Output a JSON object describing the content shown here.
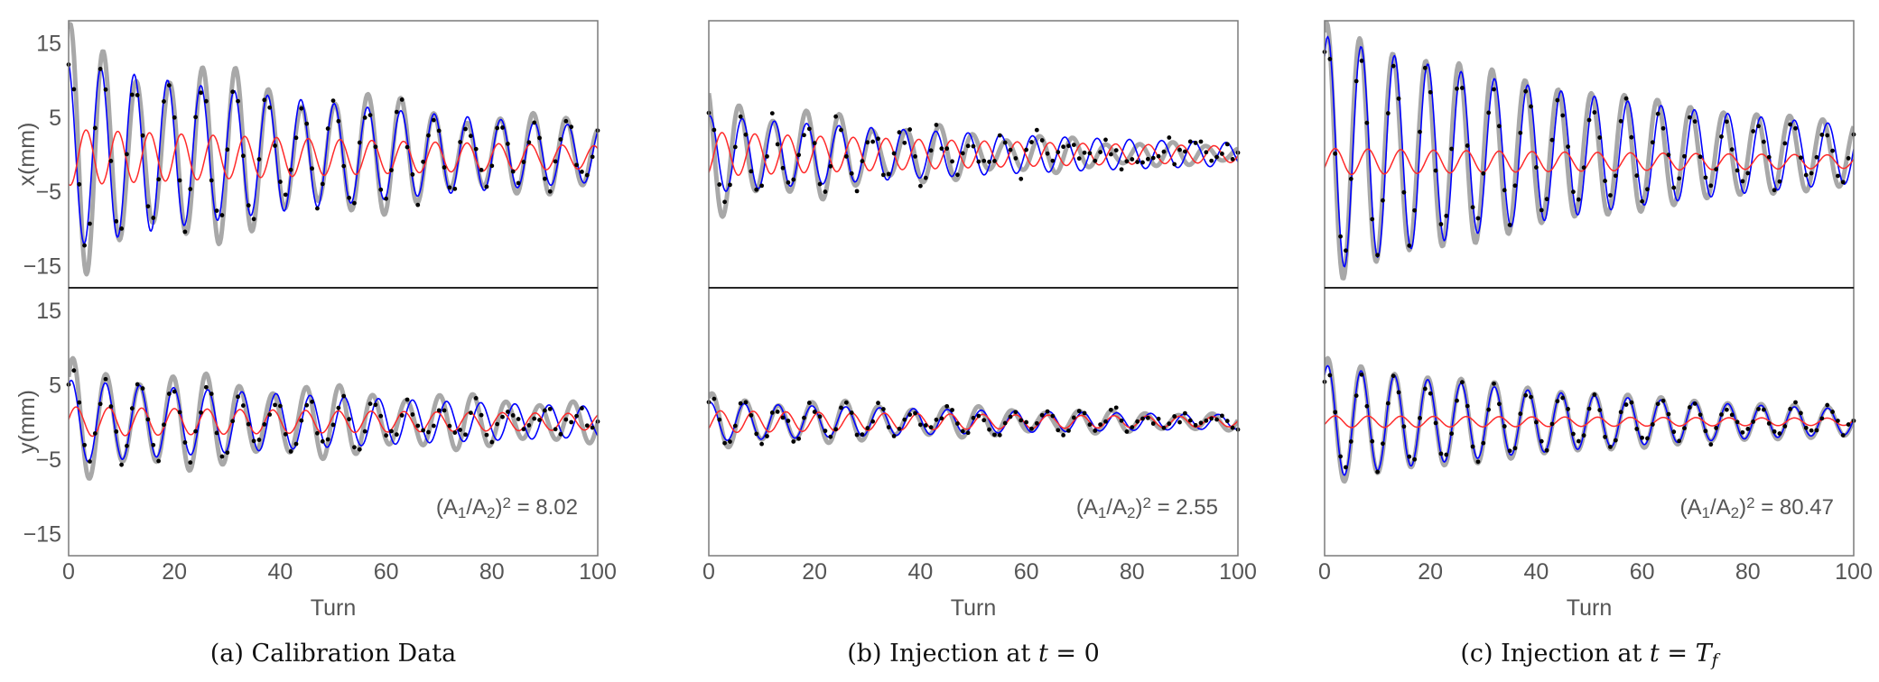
{
  "chart_data": {
    "type": "line",
    "x": {
      "label": "Turn",
      "range": [
        0,
        100
      ],
      "ticks": [
        0,
        20,
        40,
        60,
        80,
        100
      ]
    },
    "y_ticks": [
      15,
      5,
      -5,
      -15
    ],
    "ylim": [
      -18,
      18
    ],
    "colors": {
      "measured": "#000000",
      "fit_gray": "#a8a8a8",
      "fit_blue": "#0000ff",
      "fit_red": "#ff2a2a",
      "frame": "#7a7a7a"
    },
    "legend": "none",
    "model": "offset + amp*exp(-decay*turn)*(1+beat*cos(2*pi*turn/beat_period))*cos(2*pi*(turn-peak)/period)",
    "panels": [
      {
        "caption": [
          {
            "t": "(a) Calibration Data"
          }
        ],
        "annotation": [
          {
            "t": "(A"
          },
          {
            "t": "1",
            "sub": true
          },
          {
            "t": "/A"
          },
          {
            "t": "2",
            "sub": true
          },
          {
            "t": ")"
          },
          {
            "t": "2",
            "sup": true
          },
          {
            "t": " = 8.02"
          }
        ],
        "ratio": 8.02,
        "subplots": [
          {
            "ylabel": "x(mm)",
            "noise": 1.6,
            "gray": {
              "amp": 14.5,
              "decay": 0.013,
              "period": 6.25,
              "peak": 0.3,
              "offset": 0,
              "beat": 0.22,
              "beat_period": 30
            },
            "blue": {
              "amp": 12.5,
              "decay": 0.012,
              "period": 6.3,
              "peak": -0.2,
              "offset": 0,
              "beat": 0,
              "beat_period": 1
            },
            "red": {
              "amp": 3.8,
              "decay": 0.009,
              "period": 6.0,
              "peak": 3.3,
              "offset": -0.4,
              "beat": 0,
              "beat_period": 1
            }
          },
          {
            "ylabel": "y(mm)",
            "noise": 1.2,
            "gray": {
              "amp": 7.2,
              "decay": 0.011,
              "period": 6.3,
              "peak": 0.8,
              "offset": 0,
              "beat": 0.2,
              "beat_period": 25
            },
            "blue": {
              "amp": 5.6,
              "decay": 0.01,
              "period": 6.45,
              "peak": 0.5,
              "offset": 0,
              "beat": 0,
              "beat_period": 1
            },
            "red": {
              "amp": 2.0,
              "decay": 0.006,
              "period": 6.2,
              "peak": 1.4,
              "offset": 0,
              "beat": 0,
              "beat_period": 1
            }
          }
        ]
      },
      {
        "caption": [
          {
            "t": "(b) Injection at "
          },
          {
            "t": "t",
            "it": true
          },
          {
            "t": " = 0"
          }
        ],
        "annotation": [
          {
            "t": "(A"
          },
          {
            "t": "1",
            "sub": true
          },
          {
            "t": "/A"
          },
          {
            "t": "2",
            "sub": true
          },
          {
            "t": ")"
          },
          {
            "t": "2",
            "sup": true
          },
          {
            "t": " = 2.55"
          }
        ],
        "ratio": 2.55,
        "subplots": [
          {
            "ylabel": "x(mm)",
            "noise": 1.8,
            "gray": {
              "amp": 7.5,
              "decay": 0.02,
              "period": 6.3,
              "peak": 5.8,
              "offset": 0,
              "beat": 0.25,
              "beat_period": 22
            },
            "blue": {
              "amp": 5.2,
              "decay": 0.012,
              "period": 6.1,
              "peak": 0.2,
              "offset": 0,
              "beat": 0,
              "beat_period": 1
            },
            "red": {
              "amp": 3.0,
              "decay": 0.01,
              "period": 6.2,
              "peak": 2.5,
              "offset": 0,
              "beat": 0,
              "beat_period": 1
            }
          },
          {
            "ylabel": "y(mm)",
            "noise": 0.9,
            "gray": {
              "amp": 3.2,
              "decay": 0.012,
              "period": 6.3,
              "peak": 0.6,
              "offset": 0,
              "beat": 0.2,
              "beat_period": 25
            },
            "blue": {
              "amp": 2.6,
              "decay": 0.01,
              "period": 6.4,
              "peak": 0.3,
              "offset": 0,
              "beat": 0,
              "beat_period": 1
            },
            "red": {
              "amp": 1.5,
              "decay": 0.008,
              "period": 6.2,
              "peak": 2.2,
              "offset": 0,
              "beat": 0,
              "beat_period": 1
            }
          }
        ]
      },
      {
        "caption": [
          {
            "t": "(c) Injection at "
          },
          {
            "t": "t",
            "it": true
          },
          {
            "t": " = "
          },
          {
            "t": "T",
            "it": true
          },
          {
            "t": "f",
            "it": true,
            "sub": true
          }
        ],
        "annotation": [
          {
            "t": "(A"
          },
          {
            "t": "1",
            "sub": true
          },
          {
            "t": "/A"
          },
          {
            "t": "2",
            "sub": true
          },
          {
            "t": ")"
          },
          {
            "t": "2",
            "sup": true
          },
          {
            "t": " = 80.47"
          }
        ],
        "ratio": 80.47,
        "subplots": [
          {
            "ylabel": "x(mm)",
            "noise": 1.2,
            "gray": {
              "amp": 17,
              "decay": 0.014,
              "period": 6.25,
              "peak": 0.4,
              "offset": 0,
              "beat": 0.05,
              "beat_period": 30
            },
            "blue": {
              "amp": 16,
              "decay": 0.014,
              "period": 6.3,
              "peak": 0.6,
              "offset": 0,
              "beat": 0,
              "beat_period": 1
            },
            "red": {
              "amp": 1.8,
              "decay": 0.007,
              "period": 6.2,
              "peak": 2.0,
              "offset": -1.0,
              "beat": 0,
              "beat_period": 1
            }
          },
          {
            "ylabel": "y(mm)",
            "noise": 0.8,
            "gray": {
              "amp": 8.2,
              "decay": 0.015,
              "period": 6.3,
              "peak": 0.6,
              "offset": 0,
              "beat": 0.05,
              "beat_period": 30
            },
            "blue": {
              "amp": 7.6,
              "decay": 0.015,
              "period": 6.3,
              "peak": 0.6,
              "offset": 0,
              "beat": 0,
              "beat_period": 1
            },
            "red": {
              "amp": 0.8,
              "decay": 0.005,
              "period": 6.2,
              "peak": 2.0,
              "offset": 0,
              "beat": 0,
              "beat_period": 1
            }
          }
        ]
      }
    ]
  }
}
